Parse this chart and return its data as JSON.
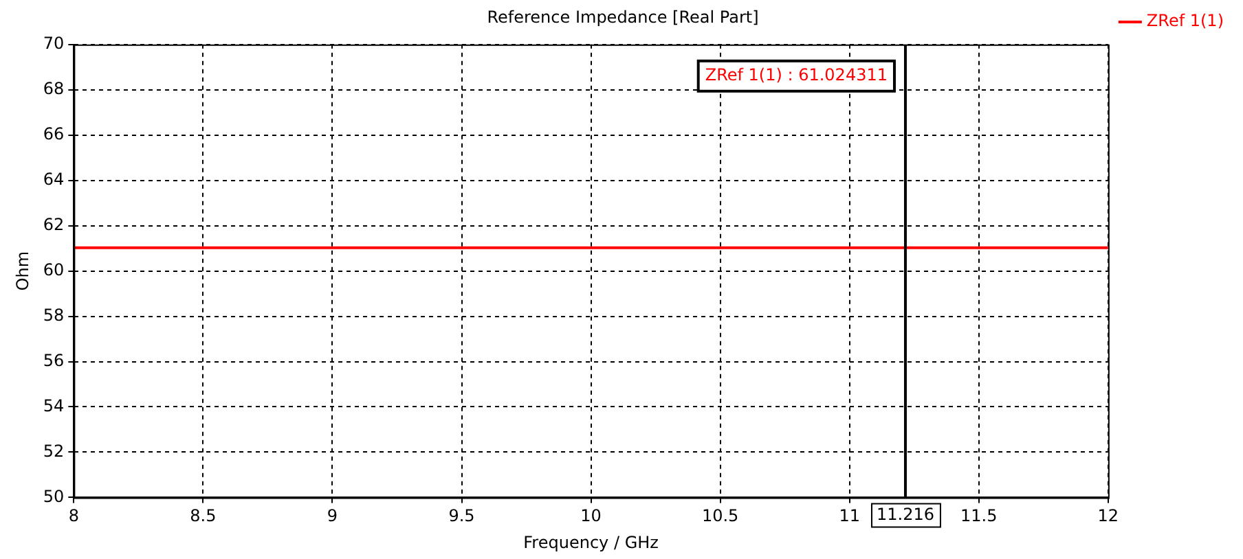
{
  "chart_data": {
    "type": "line",
    "title": "Reference Impedance [Real Part]",
    "xlabel": "Frequency / GHz",
    "ylabel": "Ohm",
    "x": [
      8,
      12
    ],
    "series": [
      {
        "name": "ZRef 1(1)",
        "color": "#ff0000",
        "values": [
          61.024311,
          61.024311
        ]
      }
    ],
    "xlim": [
      8,
      12
    ],
    "xticks": [
      8,
      8.5,
      9,
      9.5,
      10,
      10.5,
      11,
      11.5,
      12
    ],
    "ylim": [
      50,
      70
    ],
    "yticks": [
      50,
      52,
      54,
      56,
      58,
      60,
      62,
      64,
      66,
      68,
      70
    ],
    "grid": true,
    "legend": "top right",
    "marker": "none",
    "line_style": "solid",
    "ref_lines": [
      {
        "axis": "x",
        "value": 11.216,
        "label": "11.216",
        "color": "#000000"
      }
    ],
    "annotations": [
      "ZRef 1(1) : 61.024311"
    ]
  }
}
